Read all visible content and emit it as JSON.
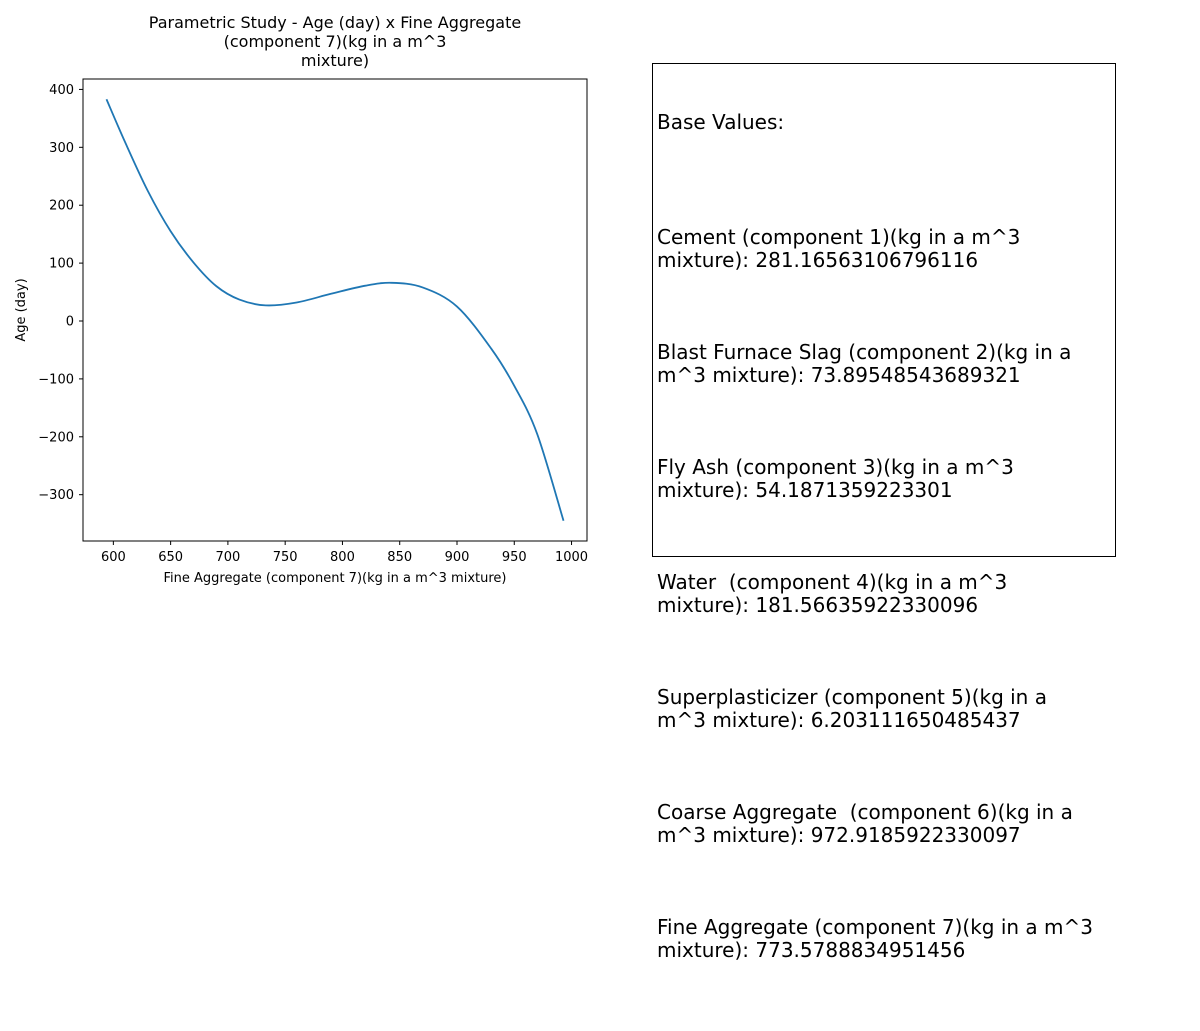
{
  "chart_data": {
    "type": "line",
    "title": "Parametric Study - Age (day) x Fine Aggregate\n(component 7)(kg in a m^3\nmixture)",
    "title_lines": [
      "Parametric Study - Age (day) x Fine Aggregate",
      "(component 7)(kg in a m^3",
      "mixture)"
    ],
    "xlabel": "Fine Aggregate (component 7)(kg in a m^3 mixture)",
    "ylabel": "Age (day)",
    "xlim": [
      573.5,
      1013.5
    ],
    "ylim": [
      -380,
      418
    ],
    "xticks": [
      600,
      650,
      700,
      750,
      800,
      850,
      900,
      950,
      1000
    ],
    "yticks": [
      -300,
      -200,
      -100,
      0,
      100,
      200,
      300,
      400
    ],
    "xtick_labels": [
      "600",
      "650",
      "700",
      "750",
      "800",
      "850",
      "900",
      "950",
      "1000"
    ],
    "ytick_labels": [
      "−300",
      "−200",
      "−100",
      "0",
      "100",
      "200",
      "300",
      "400"
    ],
    "grid": false,
    "series": [
      {
        "color": "#1f77b4",
        "x": [
          594,
          610,
          630,
          650,
          670,
          690,
          710,
          733,
          760,
          790,
          820,
          843,
          870,
          900,
          930,
          950,
          970,
          993
        ],
        "y": [
          383,
          310,
          225,
          155,
          101,
          60,
          37,
          27,
          32,
          47,
          61,
          66,
          58,
          25,
          -48,
          -112,
          -195,
          -345
        ]
      }
    ]
  },
  "info_box": {
    "header": "Base Values:",
    "items": [
      "Cement (component 1)(kg in a m^3\nmixture): 281.16563106796116",
      "Blast Furnace Slag (component 2)(kg in a\nm^3 mixture): 73.89548543689321",
      "Fly Ash (component 3)(kg in a m^3\nmixture): 54.1871359223301",
      "Water  (component 4)(kg in a m^3\nmixture): 181.56635922330096",
      "Superplasticizer (component 5)(kg in a\nm^3 mixture): 6.203111650485437",
      "Coarse Aggregate  (component 6)(kg in a\nm^3 mixture): 972.9185922330097",
      "Fine Aggregate (component 7)(kg in a m^3\nmixture): 773.5788834951456"
    ]
  }
}
